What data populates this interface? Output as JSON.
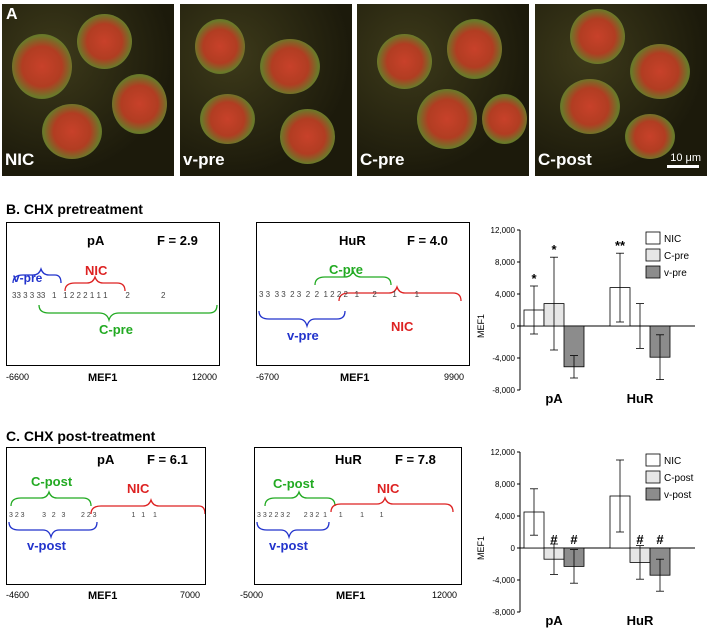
{
  "panel_a": {
    "letter": "A",
    "images": [
      {
        "label": "NIC"
      },
      {
        "label": "v-pre"
      },
      {
        "label": "C-pre"
      },
      {
        "label": "C-post",
        "scale": "10 μm"
      }
    ]
  },
  "section_b": {
    "title": "B. CHX pretreatment"
  },
  "section_c": {
    "title": "C. CHX post-treatment"
  },
  "plots": [
    {
      "id": "b-pa",
      "title": "pA",
      "f": "F = 2.9",
      "xlabel": "MEF1",
      "xmin": "-6600",
      "xmax": "12000",
      "digits": "33 3 3 33   1   1 2 2 2 1 1 1        2              2",
      "groups": [
        {
          "label": "v-pre",
          "color": "#2233cc"
        },
        {
          "label": "NIC",
          "color": "#dd2222"
        },
        {
          "label": "C-pre",
          "color": "#22aa22"
        }
      ]
    },
    {
      "id": "b-hur",
      "title": "HuR",
      "f": "F = 4.0",
      "xlabel": "MEF1",
      "xmin": "-6700",
      "xmax": "9900",
      "digits": "3 3  3 3  2 3  2  2  1 2 2 2   1      2       1        1",
      "groups": [
        {
          "label": "C-pre",
          "color": "#22aa22"
        },
        {
          "label": "v-pre",
          "color": "#2233cc"
        },
        {
          "label": "NIC",
          "color": "#dd2222"
        }
      ]
    },
    {
      "id": "c-pa",
      "title": "pA",
      "f": "F = 6.1",
      "xlabel": "MEF1",
      "xmin": "-4600",
      "xmax": "7000",
      "digits": "3 2 3         3   2   3        2 2 3                  1   1    1",
      "groups": [
        {
          "label": "C-post",
          "color": "#22aa22"
        },
        {
          "label": "NIC",
          "color": "#dd2222"
        },
        {
          "label": "v-post",
          "color": "#2233cc"
        }
      ]
    },
    {
      "id": "c-hur",
      "title": "HuR",
      "f": "F = 7.8",
      "xlabel": "MEF1",
      "xmin": "-5000",
      "xmax": "12000",
      "digits": "3 3 2 2 3 2       2 3 2  1      1         1        1",
      "groups": [
        {
          "label": "C-post",
          "color": "#22aa22"
        },
        {
          "label": "NIC",
          "color": "#dd2222"
        },
        {
          "label": "v-post",
          "color": "#2233cc"
        }
      ]
    }
  ],
  "chart_data": [
    {
      "type": "bar",
      "title": "CHX pretreatment",
      "ylabel": "MEF1",
      "ylim": [
        -8000,
        12000
      ],
      "yticks": [
        "12,000",
        "8,000",
        "4,000",
        "0",
        "-4,000",
        "-8,000"
      ],
      "categories": [
        "pA",
        "HuR"
      ],
      "series": [
        {
          "name": "NIC",
          "color": "#ffffff",
          "values": [
            2000,
            4800
          ],
          "errors": [
            3000,
            4300
          ],
          "marks": [
            "*",
            "**"
          ]
        },
        {
          "name": "C-pre",
          "color": "#e6e6e6",
          "values": [
            2800,
            0
          ],
          "errors": [
            5800,
            2800
          ],
          "marks": [
            "*",
            ""
          ]
        },
        {
          "name": "v-pre",
          "color": "#8c8c8c",
          "values": [
            -5100,
            -3900
          ],
          "errors": [
            1400,
            2800
          ],
          "marks": [
            "",
            ""
          ]
        }
      ],
      "legend": "top-right"
    },
    {
      "type": "bar",
      "title": "CHX post-treatment",
      "ylabel": "MEF1",
      "ylim": [
        -8000,
        12000
      ],
      "yticks": [
        "12,000",
        "8,000",
        "4,000",
        "0",
        "-4,000",
        "-8,000"
      ],
      "categories": [
        "pA",
        "HuR"
      ],
      "series": [
        {
          "name": "NIC",
          "color": "#ffffff",
          "values": [
            4500,
            6500
          ],
          "errors": [
            2900,
            4500
          ],
          "marks": [
            "",
            ""
          ]
        },
        {
          "name": "C-post",
          "color": "#e6e6e6",
          "values": [
            -1400,
            -1800
          ],
          "errors": [
            1900,
            2100
          ],
          "marks": [
            "#",
            "#"
          ]
        },
        {
          "name": "v-post",
          "color": "#8c8c8c",
          "values": [
            -2300,
            -3400
          ],
          "errors": [
            2100,
            2000
          ],
          "marks": [
            "#",
            "#"
          ]
        }
      ],
      "legend": "top-right"
    }
  ]
}
